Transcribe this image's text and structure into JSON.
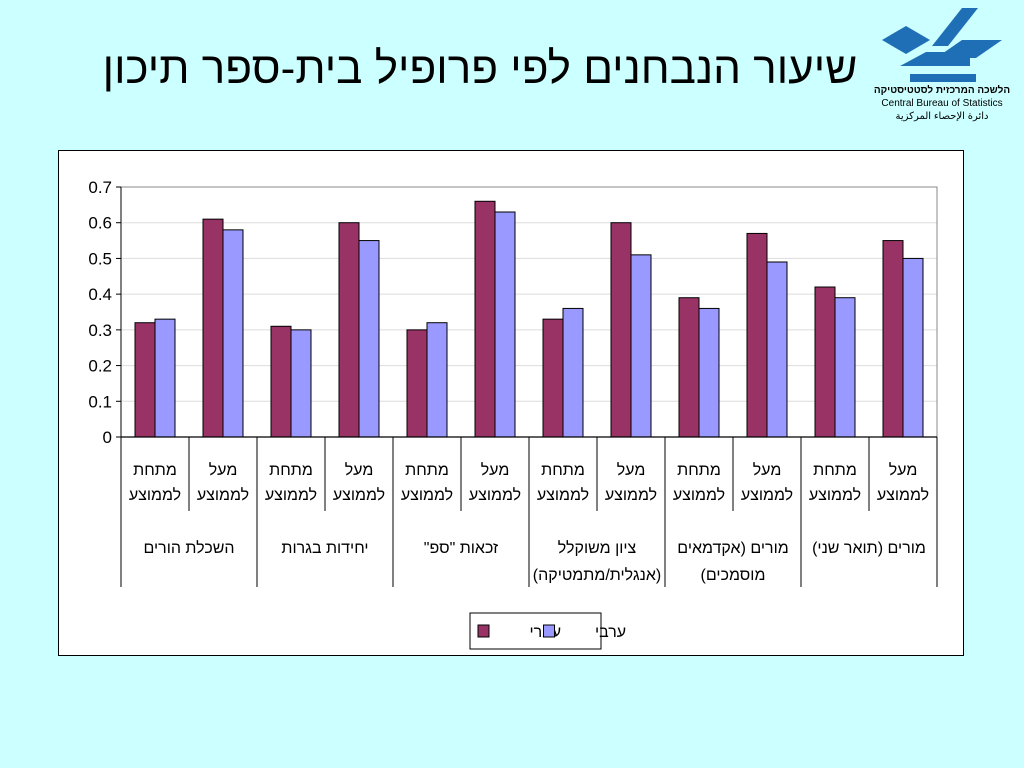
{
  "slide": {
    "title": "שיעור הנבחנים לפי פרופיל בית-ספר תיכון"
  },
  "logo": {
    "icon": "cbs-logo-icon",
    "hebrew": "הלשכה המרכזית לסטטיסטיקה",
    "english": "Central Bureau of Statistics",
    "arabic": "دائرة الإحصاء المركزية"
  },
  "chart_data": {
    "type": "bar",
    "ylim": [
      0,
      0.7
    ],
    "yticks": [
      "0",
      "0.1",
      "0.2",
      "0.3",
      "0.4",
      "0.5",
      "0.6",
      "0.7"
    ],
    "grid": true,
    "legend_position": "bottom",
    "group_labels": [
      [
        "השכלת הורים"
      ],
      [
        "יחידות בגרות"
      ],
      [
        "זכאות \"ספ\""
      ],
      [
        "ציון משוקלל",
        "(אנגלית/מתמטיקה)"
      ],
      [
        "מורים (אקדמאים",
        "מוסמכים)"
      ],
      [
        "מורים (תואר שני)"
      ]
    ],
    "categories": [
      [
        "מתחת",
        "לממוצע"
      ],
      [
        "מעל",
        "לממוצע"
      ],
      [
        "מתחת",
        "לממוצע"
      ],
      [
        "מעל",
        "לממוצע"
      ],
      [
        "מתחת",
        "לממוצע"
      ],
      [
        "מעל",
        "לממוצע"
      ],
      [
        "מתחת",
        "לממוצע"
      ],
      [
        "מעל",
        "לממוצע"
      ],
      [
        "מתחת",
        "לממוצע"
      ],
      [
        "מעל",
        "לממוצע"
      ],
      [
        "מתחת",
        "לממוצע"
      ],
      [
        "מעל",
        "לממוצע"
      ]
    ],
    "series": [
      {
        "name": "עברי",
        "color": "#993366",
        "values": [
          0.32,
          0.61,
          0.31,
          0.6,
          0.3,
          0.66,
          0.33,
          0.6,
          0.39,
          0.57,
          0.42,
          0.55
        ]
      },
      {
        "name": "ערבי",
        "color": "#9999ff",
        "values": [
          0.33,
          0.58,
          0.3,
          0.55,
          0.32,
          0.63,
          0.36,
          0.51,
          0.36,
          0.49,
          0.39,
          0.5
        ]
      }
    ]
  }
}
